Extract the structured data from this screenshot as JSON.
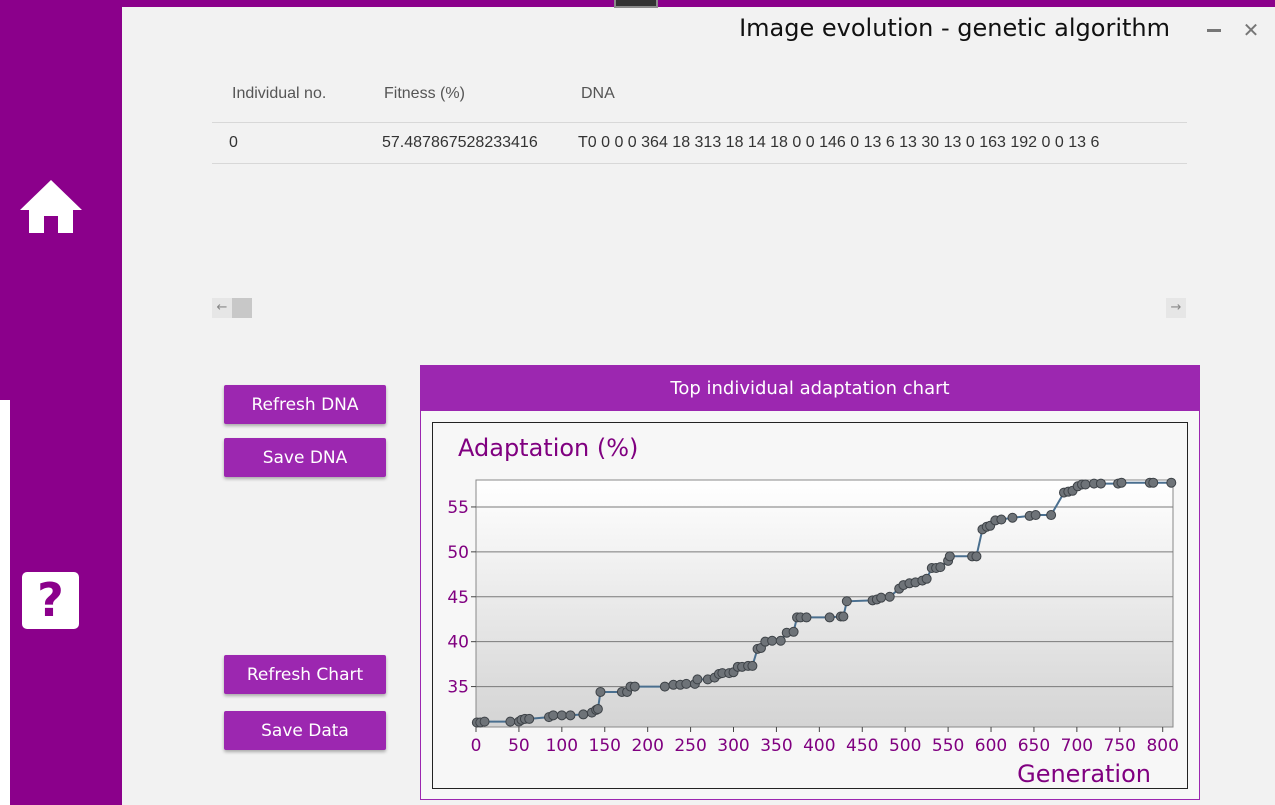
{
  "window": {
    "title": "Image evolution - genetic algorithm"
  },
  "sidebar": {
    "home_icon": "home-icon",
    "help_icon": "help-icon",
    "help_glyph": "?"
  },
  "grid": {
    "columns": [
      "Individual no.",
      "Fitness (%)",
      "DNA"
    ],
    "rows": [
      {
        "individual": "0",
        "fitness": "57.487867528233416",
        "dna": "T0 0 0 0 364 18 313 18 14 18 0 0 146 0 13 6 13 30 13 0 163 192 0 0 13 6"
      }
    ]
  },
  "buttons": {
    "refresh_dna": "Refresh DNA",
    "save_dna": "Save DNA",
    "refresh_chart": "Refresh Chart",
    "save_data": "Save Data"
  },
  "colors": {
    "accent": "#8b008b",
    "button": "#9c27b0",
    "axis_text": "#800080",
    "series_line": "#4a6f8f",
    "marker": "#6e7378"
  },
  "chart_panel": {
    "header": "Top individual adaptation chart"
  },
  "chart_data": {
    "type": "line",
    "ylabel": "Adaptation (%)",
    "xlabel": "Generation",
    "xlim": [
      0,
      812
    ],
    "ylim": [
      30.5,
      58
    ],
    "xticks": [
      0,
      50,
      100,
      150,
      200,
      250,
      300,
      350,
      400,
      450,
      500,
      550,
      600,
      650,
      700,
      750,
      800
    ],
    "yticks": [
      35,
      40,
      45,
      50,
      55
    ],
    "grid": "horizontal",
    "legend": "none",
    "x": [
      1,
      5,
      10,
      40,
      50,
      53,
      57,
      62,
      85,
      90,
      100,
      110,
      125,
      135,
      140,
      142,
      145,
      170,
      176,
      180,
      185,
      220,
      230,
      238,
      245,
      255,
      258,
      270,
      278,
      283,
      287,
      295,
      300,
      305,
      310,
      317,
      322,
      328,
      332,
      337,
      345,
      355,
      362,
      370,
      374,
      378,
      385,
      412,
      425,
      428,
      432,
      462,
      467,
      472,
      482,
      493,
      498,
      505,
      512,
      520,
      525,
      531,
      536,
      541,
      550,
      552,
      578,
      583,
      590,
      595,
      599,
      605,
      612,
      625,
      645,
      652,
      670,
      685,
      690,
      695,
      701,
      706,
      710,
      720,
      728,
      748,
      752,
      785,
      789,
      810
    ],
    "y": [
      31.0,
      31.0,
      31.1,
      31.1,
      31.1,
      31.3,
      31.4,
      31.4,
      31.6,
      31.8,
      31.8,
      31.8,
      31.9,
      32.1,
      32.4,
      32.5,
      34.4,
      34.4,
      34.4,
      35.0,
      35.0,
      35.0,
      35.2,
      35.2,
      35.3,
      35.3,
      35.8,
      35.8,
      36.0,
      36.4,
      36.5,
      36.5,
      36.6,
      37.2,
      37.2,
      37.3,
      37.3,
      39.2,
      39.3,
      40.0,
      40.1,
      40.1,
      41.0,
      41.1,
      42.7,
      42.7,
      42.7,
      42.7,
      42.8,
      42.8,
      44.5,
      44.6,
      44.7,
      44.9,
      45.0,
      45.9,
      46.3,
      46.5,
      46.6,
      46.8,
      47.0,
      48.2,
      48.2,
      48.3,
      49.0,
      49.5,
      49.5,
      49.5,
      52.5,
      52.8,
      52.9,
      53.5,
      53.6,
      53.8,
      54.0,
      54.1,
      54.1,
      56.6,
      56.7,
      56.8,
      57.3,
      57.5,
      57.5,
      57.6,
      57.6,
      57.6,
      57.7,
      57.7,
      57.7,
      57.7
    ]
  }
}
